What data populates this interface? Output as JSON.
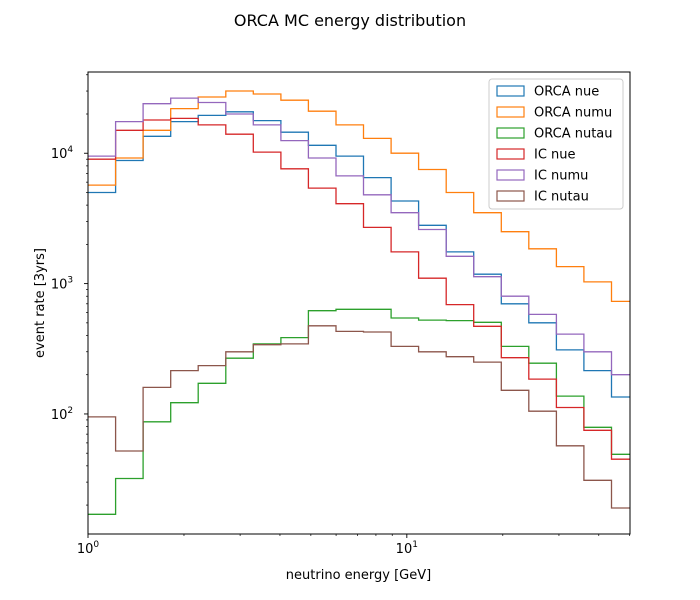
{
  "chart_data": {
    "type": "histogram",
    "title": "ORCA MC energy distribution",
    "xlabel": "neutrino energy [GeV]",
    "ylabel": "event rate [3yrs]",
    "xscale": "log",
    "yscale": "log",
    "xlim": [
      1,
      50.12
    ],
    "ylim": [
      12,
      42000
    ],
    "legend_position": "top-right",
    "bin_edges": [
      1.0,
      1.2202,
      1.4888,
      1.8166,
      2.2166,
      2.7046,
      3.3001,
      4.0267,
      4.9132,
      5.995,
      7.315,
      8.9255,
      10.8906,
      13.2884,
      16.2141,
      19.7839,
      24.1397,
      29.4543,
      35.9392,
      43.8517,
      50.12
    ],
    "x_ticks": [
      {
        "value": 1,
        "base": "10",
        "exp": "0"
      },
      {
        "value": 10,
        "base": "10",
        "exp": "1"
      }
    ],
    "y_ticks": [
      {
        "value": 100,
        "base": "10",
        "exp": "2"
      },
      {
        "value": 1000,
        "base": "10",
        "exp": "3"
      },
      {
        "value": 10000,
        "base": "10",
        "exp": "4"
      }
    ],
    "series": [
      {
        "name": "ORCA nue",
        "color": "#1f77b4",
        "values": [
          5000,
          8800,
          13500,
          17500,
          19500,
          20800,
          17800,
          14500,
          11500,
          9500,
          6500,
          4300,
          2800,
          1750,
          1180,
          700,
          500,
          310,
          215,
          135
        ]
      },
      {
        "name": "ORCA numu",
        "color": "#ff7f0e",
        "values": [
          5700,
          9200,
          15000,
          22000,
          27000,
          30000,
          28500,
          25500,
          21000,
          16500,
          13000,
          10000,
          7500,
          5000,
          3500,
          2500,
          1850,
          1350,
          1030,
          730
        ]
      },
      {
        "name": "ORCA nutau",
        "color": "#2ca02c",
        "values": [
          17,
          32,
          87,
          122,
          172,
          268,
          345,
          385,
          620,
          635,
          635,
          545,
          525,
          520,
          505,
          330,
          245,
          137,
          79,
          49
        ]
      },
      {
        "name": "IC nue",
        "color": "#d62728",
        "values": [
          9000,
          15000,
          18000,
          18500,
          16500,
          14000,
          10200,
          7600,
          5400,
          4100,
          2700,
          1750,
          1100,
          690,
          470,
          270,
          185,
          112,
          75,
          45
        ]
      },
      {
        "name": "IC numu",
        "color": "#9467bd",
        "values": [
          9500,
          17500,
          24000,
          26500,
          24500,
          20000,
          16500,
          12500,
          9200,
          6700,
          4800,
          3500,
          2600,
          1620,
          1130,
          800,
          580,
          410,
          300,
          200
        ]
      },
      {
        "name": "IC nutau",
        "color": "#8c564b",
        "values": [
          95,
          52,
          160,
          215,
          235,
          300,
          340,
          345,
          475,
          430,
          425,
          330,
          300,
          275,
          250,
          152,
          105,
          57,
          31,
          19
        ]
      }
    ]
  }
}
